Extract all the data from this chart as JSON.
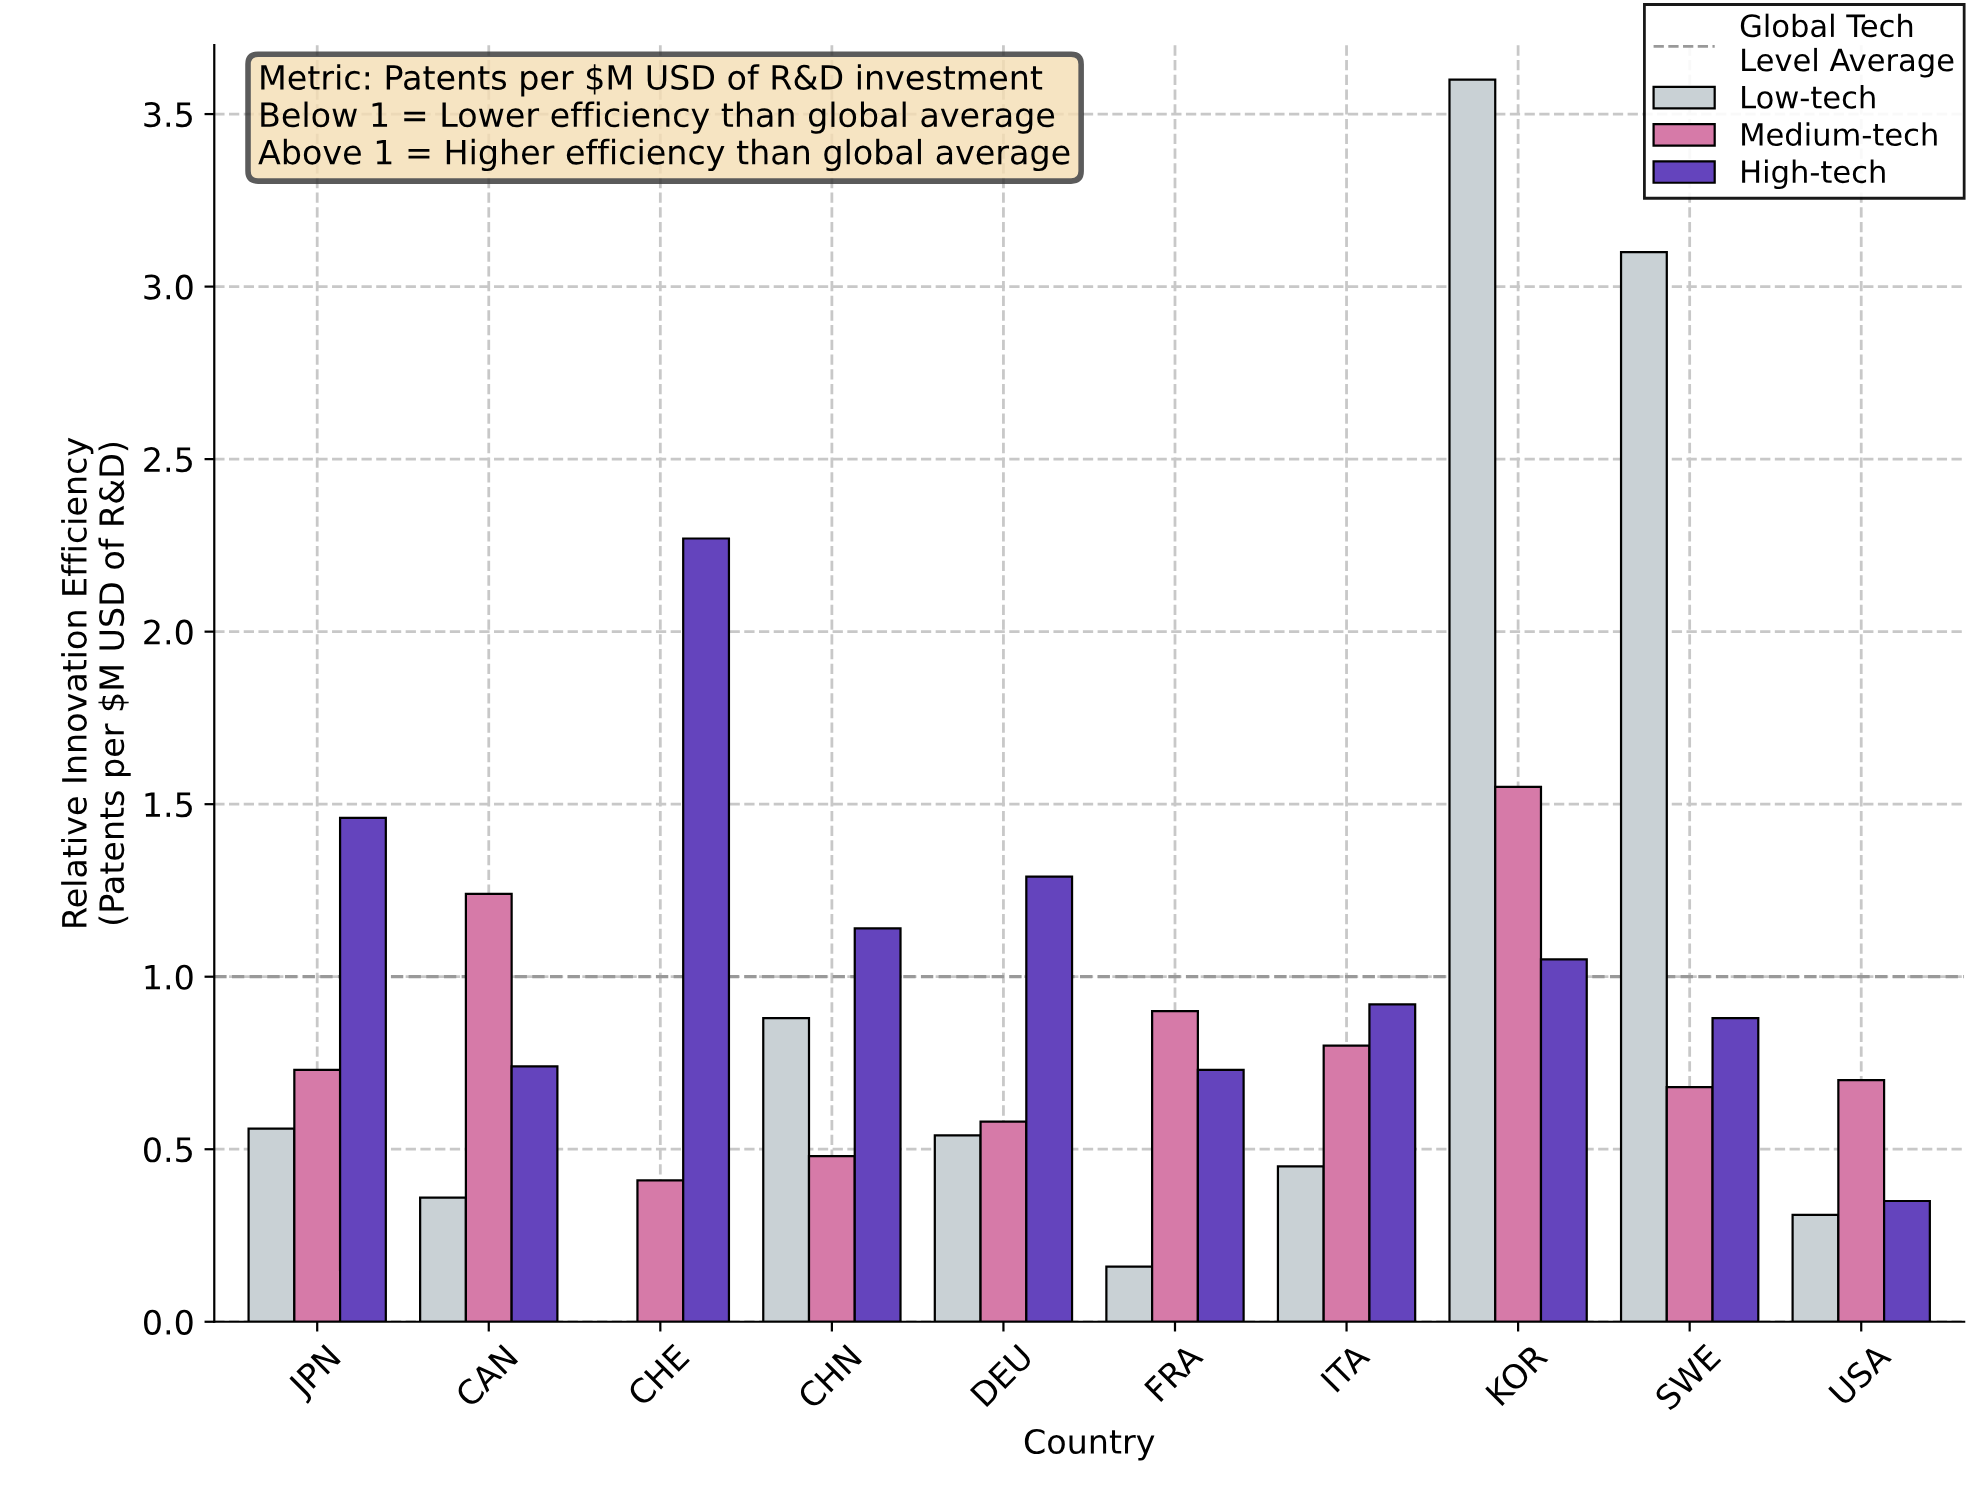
{
  "chart_data": {
    "type": "bar",
    "xlabel": "Country",
    "ylabel": "Relative Innovation Efficiency\n(Patents per $M USD of R&D)",
    "categories": [
      "JPN",
      "CAN",
      "CHE",
      "CHN",
      "DEU",
      "FRA",
      "ITA",
      "KOR",
      "SWE",
      "USA"
    ],
    "series": [
      {
        "name": "Low-tech",
        "color": "#c9d1d5",
        "values": [
          0.56,
          0.36,
          null,
          0.88,
          0.54,
          0.16,
          0.45,
          3.6,
          3.1,
          0.31
        ]
      },
      {
        "name": "Medium-tech",
        "color": "#d67aa8",
        "values": [
          0.73,
          1.24,
          0.41,
          0.48,
          0.58,
          0.9,
          0.8,
          1.55,
          0.68,
          0.7
        ]
      },
      {
        "name": "High-tech",
        "color": "#6444bd",
        "values": [
          1.46,
          0.74,
          2.27,
          1.14,
          1.29,
          0.73,
          0.92,
          1.05,
          0.88,
          0.35
        ]
      }
    ],
    "ylim": [
      0,
      3.7
    ],
    "yticks": [
      {
        "value": 0,
        "label": "0.0"
      },
      0.5,
      {
        "value": 1,
        "label": "1.0"
      },
      1.5,
      {
        "value": 2,
        "label": "2.0"
      },
      2.5,
      {
        "value": 3,
        "label": "3.0"
      },
      3.5
    ],
    "ref_lines": [
      {
        "axis": "y",
        "value": 1.0,
        "label": "Global Tech\nLevel Average",
        "color": "#999999",
        "line_style": "dashed"
      }
    ],
    "annotations": [
      "Metric: Patents per $M USD of R&D investment\nBelow 1 = Lower efficiency than global average\nAbove 1 = Higher efficiency than global average"
    ],
    "grid": true,
    "legend": "top right"
  }
}
